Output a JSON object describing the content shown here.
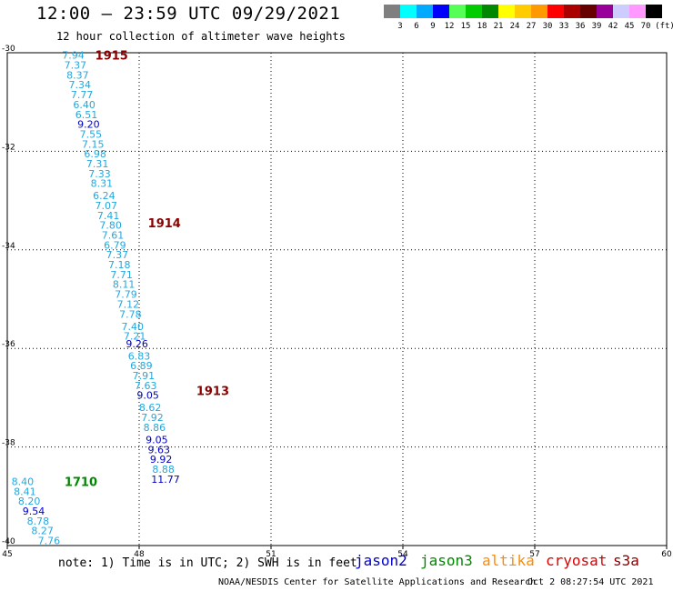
{
  "header": {
    "title": "12:00 — 23:59 UTC 09/29/2021",
    "subtitle": "12 hour collection of altimeter wave heights"
  },
  "legend": {
    "colors": [
      "#7f7f7f",
      "#00ffff",
      "#00aaff",
      "#0000ff",
      "#55ff55",
      "#00cc00",
      "#008800",
      "#ffff00",
      "#ffcc00",
      "#ff9900",
      "#ff0000",
      "#aa0000",
      "#660000",
      "#990099",
      "#ccccff",
      "#ff99ff",
      "#000000"
    ],
    "labels": [
      "3",
      "6",
      "9",
      "12",
      "15",
      "18",
      "21",
      "24",
      "27",
      "30",
      "33",
      "36",
      "39",
      "42",
      "45",
      "70"
    ],
    "unit": "(ft)"
  },
  "map": {
    "lon_ticks": [
      "45",
      "48",
      "51",
      "54",
      "57",
      "60"
    ],
    "lat_ticks": [
      "-30",
      "-32",
      "-34",
      "-36",
      "-38",
      "-40"
    ],
    "point_colors": {
      "light": "#22a8e0",
      "dark": "#0000c8",
      "pass_jason3": "#008800",
      "pass_s3a": "#8b0000"
    },
    "passes": [
      {
        "id": "1915",
        "satellite": "s3a",
        "lon": 47.0,
        "lat": -30.05
      },
      {
        "id": "1914",
        "satellite": "s3a",
        "lon": 48.2,
        "lat": -33.45
      },
      {
        "id": "1913",
        "satellite": "s3a",
        "lon": 49.3,
        "lat": -36.85
      },
      {
        "id": "1710",
        "satellite": "jason3",
        "lon": 46.3,
        "lat": -38.7
      }
    ],
    "points": [
      {
        "v": "7.94",
        "lon": 46.5,
        "lat": -30.05,
        "c": "light"
      },
      {
        "v": "7.37",
        "lon": 46.55,
        "lat": -30.25,
        "c": "light"
      },
      {
        "v": "8.37",
        "lon": 46.6,
        "lat": -30.45,
        "c": "light"
      },
      {
        "v": "7.34",
        "lon": 46.65,
        "lat": -30.65,
        "c": "light"
      },
      {
        "v": "7.77",
        "lon": 46.7,
        "lat": -30.85,
        "c": "light"
      },
      {
        "v": "6.40",
        "lon": 46.75,
        "lat": -31.05,
        "c": "light"
      },
      {
        "v": "6.51",
        "lon": 46.8,
        "lat": -31.25,
        "c": "light"
      },
      {
        "v": "9.20",
        "lon": 46.85,
        "lat": -31.45,
        "c": "dark"
      },
      {
        "v": "7.55",
        "lon": 46.9,
        "lat": -31.65,
        "c": "light"
      },
      {
        "v": "7.15",
        "lon": 46.95,
        "lat": -31.85,
        "c": "light"
      },
      {
        "v": "6.98",
        "lon": 47.0,
        "lat": -32.05,
        "c": "light"
      },
      {
        "v": "7.31",
        "lon": 47.05,
        "lat": -32.25,
        "c": "light"
      },
      {
        "v": "7.33",
        "lon": 47.1,
        "lat": -32.45,
        "c": "light"
      },
      {
        "v": "8.31",
        "lon": 47.15,
        "lat": -32.65,
        "c": "light"
      },
      {
        "v": "6.24",
        "lon": 47.2,
        "lat": -32.9,
        "c": "light"
      },
      {
        "v": "7.07",
        "lon": 47.25,
        "lat": -33.1,
        "c": "light"
      },
      {
        "v": "7.41",
        "lon": 47.3,
        "lat": -33.3,
        "c": "light"
      },
      {
        "v": "7.80",
        "lon": 47.35,
        "lat": -33.5,
        "c": "light"
      },
      {
        "v": "7.61",
        "lon": 47.4,
        "lat": -33.7,
        "c": "light"
      },
      {
        "v": "6.79",
        "lon": 47.45,
        "lat": -33.9,
        "c": "light"
      },
      {
        "v": "7.37",
        "lon": 47.5,
        "lat": -34.1,
        "c": "light"
      },
      {
        "v": "7.18",
        "lon": 47.55,
        "lat": -34.3,
        "c": "light"
      },
      {
        "v": "7.71",
        "lon": 47.6,
        "lat": -34.5,
        "c": "light"
      },
      {
        "v": "8.11",
        "lon": 47.65,
        "lat": -34.7,
        "c": "light"
      },
      {
        "v": "7.79",
        "lon": 47.7,
        "lat": -34.9,
        "c": "light"
      },
      {
        "v": "7.12",
        "lon": 47.75,
        "lat": -35.1,
        "c": "light"
      },
      {
        "v": "7.78",
        "lon": 47.8,
        "lat": -35.3,
        "c": "light"
      },
      {
        "v": "7.40",
        "lon": 47.85,
        "lat": -35.55,
        "c": "light"
      },
      {
        "v": "7.21",
        "lon": 47.9,
        "lat": -35.75,
        "c": "light"
      },
      {
        "v": "9.26",
        "lon": 47.95,
        "lat": -35.9,
        "c": "dark"
      },
      {
        "v": "6.83",
        "lon": 48.0,
        "lat": -36.15,
        "c": "light"
      },
      {
        "v": "6.89",
        "lon": 48.05,
        "lat": -36.35,
        "c": "light"
      },
      {
        "v": "7.91",
        "lon": 48.1,
        "lat": -36.55,
        "c": "light"
      },
      {
        "v": "7.63",
        "lon": 48.15,
        "lat": -36.75,
        "c": "light"
      },
      {
        "v": "9.05",
        "lon": 48.2,
        "lat": -36.95,
        "c": "dark"
      },
      {
        "v": "8.62",
        "lon": 48.25,
        "lat": -37.2,
        "c": "light"
      },
      {
        "v": "7.92",
        "lon": 48.3,
        "lat": -37.4,
        "c": "light"
      },
      {
        "v": "8.86",
        "lon": 48.35,
        "lat": -37.6,
        "c": "light"
      },
      {
        "v": "9.05",
        "lon": 48.4,
        "lat": -37.85,
        "c": "dark"
      },
      {
        "v": "9.63",
        "lon": 48.45,
        "lat": -38.05,
        "c": "dark"
      },
      {
        "v": "9.92",
        "lon": 48.5,
        "lat": -38.25,
        "c": "dark"
      },
      {
        "v": "8.88",
        "lon": 48.55,
        "lat": -38.45,
        "c": "light"
      },
      {
        "v": "11.77",
        "lon": 48.6,
        "lat": -38.65,
        "c": "dark"
      },
      {
        "v": "8.40",
        "lon": 45.35,
        "lat": -38.7,
        "c": "light"
      },
      {
        "v": "8.41",
        "lon": 45.4,
        "lat": -38.9,
        "c": "light"
      },
      {
        "v": "8.20",
        "lon": 45.5,
        "lat": -39.1,
        "c": "light"
      },
      {
        "v": "9.54",
        "lon": 45.6,
        "lat": -39.3,
        "c": "dark"
      },
      {
        "v": "8.78",
        "lon": 45.7,
        "lat": -39.5,
        "c": "light"
      },
      {
        "v": "8.27",
        "lon": 45.8,
        "lat": -39.7,
        "c": "light"
      },
      {
        "v": "7.76",
        "lon": 45.95,
        "lat": -39.9,
        "c": "light"
      }
    ]
  },
  "footer": {
    "note": "note: 1) Time is in UTC; 2) SWH is in feet",
    "satellites": [
      {
        "name": "jason2",
        "color": "#0000cc"
      },
      {
        "name": "jason3",
        "color": "#008800"
      },
      {
        "name": "altika",
        "color": "#ff8c00"
      },
      {
        "name": "cryosat",
        "color": "#dd0000"
      },
      {
        "name": "s3a",
        "color": "#8b0000"
      }
    ],
    "credit": "NOAA/NESDIS Center for Satellite Applications and Research",
    "timestamp": "Oct  2 08:27:54 UTC 2021"
  }
}
